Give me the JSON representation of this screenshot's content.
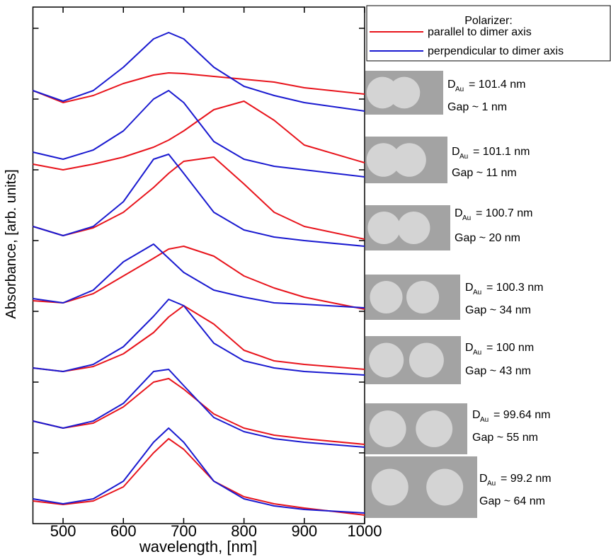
{
  "chart_data": {
    "type": "line",
    "x_label": "wavelength, [nm]",
    "y_label": "Absorbance, [arb. units]",
    "x": [
      450,
      500,
      550,
      600,
      650,
      675,
      700,
      750,
      800,
      850,
      900,
      1000
    ],
    "xlim": [
      450,
      1000
    ],
    "xticks": [
      500,
      600,
      700,
      800,
      900,
      1000
    ],
    "ylim": [
      0,
      7.3
    ],
    "yticks": [
      1,
      2,
      3,
      4,
      5,
      6,
      7
    ],
    "legend_title": "Polarizer:",
    "series": [
      {
        "name": "parallel to dimer axis",
        "color": "#e8141c",
        "values": [
          [
            6.12,
            5.95,
            6.05,
            6.22,
            6.34,
            6.37,
            6.36,
            6.32,
            6.28,
            6.24,
            6.16,
            6.07
          ],
          [
            5.08,
            5.0,
            5.08,
            5.18,
            5.32,
            5.42,
            5.55,
            5.85,
            5.97,
            5.7,
            5.35,
            5.1
          ],
          [
            4.2,
            4.07,
            4.18,
            4.4,
            4.75,
            4.95,
            5.12,
            5.18,
            4.8,
            4.4,
            4.2,
            4.02
          ],
          [
            3.15,
            3.12,
            3.25,
            3.5,
            3.75,
            3.88,
            3.92,
            3.78,
            3.5,
            3.33,
            3.2,
            3.03
          ],
          [
            2.2,
            2.15,
            2.22,
            2.4,
            2.7,
            2.92,
            3.08,
            2.82,
            2.45,
            2.3,
            2.25,
            2.18
          ],
          [
            1.45,
            1.35,
            1.42,
            1.65,
            2.0,
            2.05,
            1.9,
            1.55,
            1.35,
            1.25,
            1.2,
            1.12
          ],
          [
            0.32,
            0.27,
            0.32,
            0.52,
            1.0,
            1.2,
            1.05,
            0.6,
            0.38,
            0.28,
            0.22,
            0.12
          ]
        ]
      },
      {
        "name": "perpendicular to dimer axis",
        "color": "#1a1ad0",
        "values": [
          [
            6.12,
            5.97,
            6.12,
            6.45,
            6.85,
            6.94,
            6.85,
            6.45,
            6.18,
            6.05,
            5.95,
            5.83
          ],
          [
            5.25,
            5.15,
            5.28,
            5.55,
            6.0,
            6.12,
            5.95,
            5.4,
            5.15,
            5.05,
            5.0,
            4.9
          ],
          [
            4.2,
            4.07,
            4.2,
            4.55,
            5.15,
            5.22,
            4.95,
            4.4,
            4.15,
            4.05,
            4.0,
            3.92
          ],
          [
            3.18,
            3.12,
            3.3,
            3.7,
            3.95,
            3.75,
            3.55,
            3.3,
            3.2,
            3.12,
            3.1,
            3.05
          ],
          [
            2.2,
            2.15,
            2.25,
            2.5,
            2.93,
            3.17,
            3.08,
            2.55,
            2.3,
            2.2,
            2.15,
            2.1
          ],
          [
            1.45,
            1.35,
            1.45,
            1.7,
            2.15,
            2.18,
            1.95,
            1.5,
            1.3,
            1.2,
            1.15,
            1.08
          ],
          [
            0.35,
            0.28,
            0.35,
            0.6,
            1.15,
            1.35,
            1.15,
            0.6,
            0.35,
            0.25,
            0.2,
            0.15
          ]
        ]
      }
    ],
    "panels": [
      {
        "symbol": "D",
        "sub": "Au",
        "diameter": "= 101.4 nm",
        "gap": "Gap ~ 1 nm"
      },
      {
        "symbol": "D",
        "sub": "Au",
        "diameter": "= 101.1 nm",
        "gap": "Gap ~ 11 nm"
      },
      {
        "symbol": "D",
        "sub": "Au",
        "diameter": "= 100.7 nm",
        "gap": "Gap ~ 20 nm"
      },
      {
        "symbol": "D",
        "sub": "Au",
        "diameter": "= 100.3 nm",
        "gap": "Gap ~ 34 nm"
      },
      {
        "symbol": "D",
        "sub": "Au",
        "diameter": "= 100 nm",
        "gap": "Gap ~ 43 nm"
      },
      {
        "symbol": "D",
        "sub": "Au",
        "diameter": "= 99.64 nm",
        "gap": "Gap ~ 55 nm"
      },
      {
        "symbol": "D",
        "sub": "Au",
        "diameter": "= 99.2 nm",
        "gap": "Gap ~ 64 nm"
      }
    ]
  }
}
